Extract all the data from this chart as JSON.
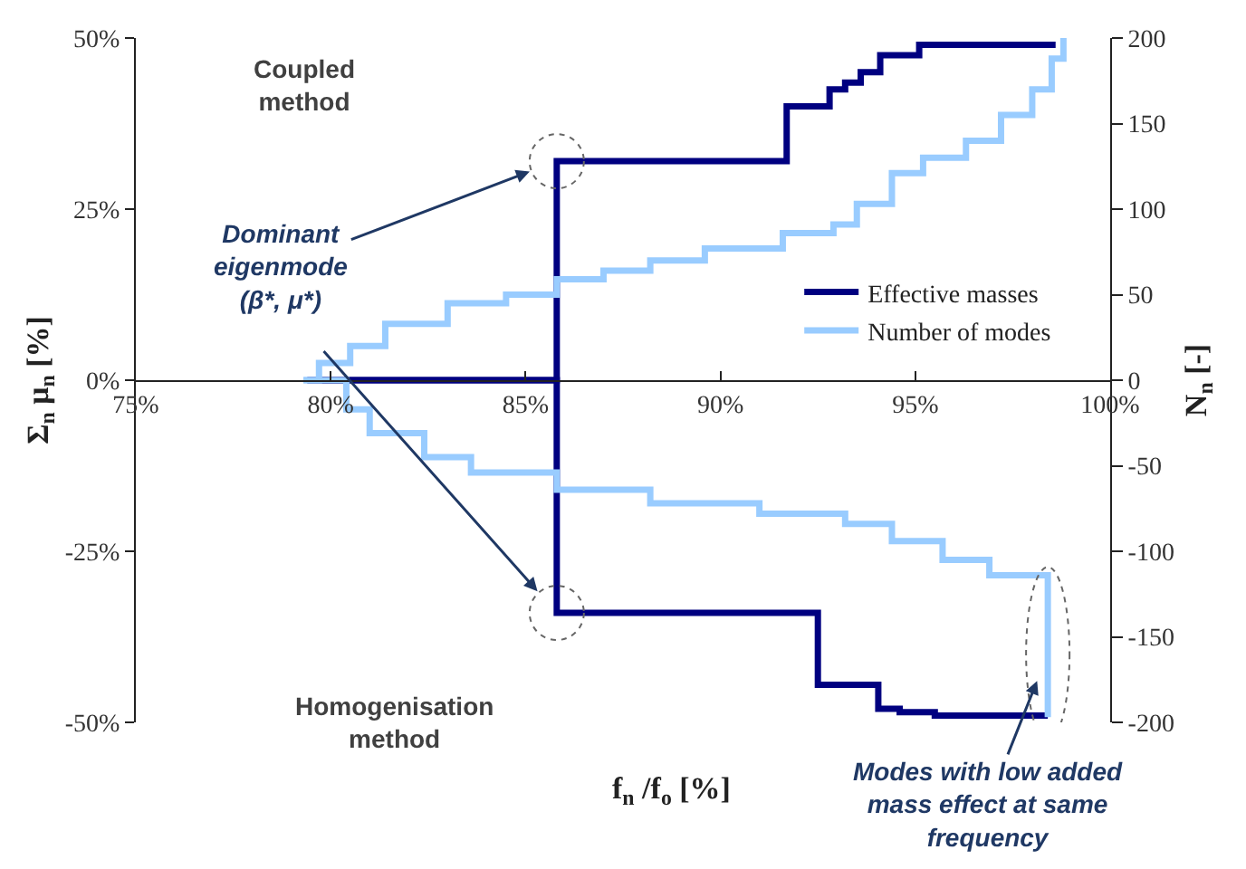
{
  "chart_data": {
    "type": "step",
    "xlabel": "f$_{n}$ /f$_{o}$ [%]",
    "ylabel": "Σ$_{n}$ μ$_{n}$ [%]",
    "y2label": "N$_{n}$ [-]",
    "xlim": [
      75,
      100
    ],
    "xticks": [
      {
        "value": 75,
        "label": "75%"
      },
      {
        "value": 80,
        "label": "80%"
      },
      {
        "value": 85,
        "label": "85%"
      },
      {
        "value": 90,
        "label": "90%"
      },
      {
        "value": 95,
        "label": "95%"
      },
      {
        "value": 100,
        "label": "100%"
      }
    ],
    "ylim": [
      -50,
      50
    ],
    "yticks": [
      {
        "value": -50,
        "label": "-50%"
      },
      {
        "value": -25,
        "label": "-25%"
      },
      {
        "value": 0,
        "label": "0%"
      },
      {
        "value": 25,
        "label": "25%"
      },
      {
        "value": 50,
        "label": "50%"
      }
    ],
    "y2lim": [
      -200,
      200
    ],
    "y2ticks": [
      -200,
      -150,
      -100,
      -50,
      0,
      50,
      100,
      150,
      200
    ],
    "series": [
      {
        "name": "Effective masses",
        "color": "#000080",
        "x": [
          79.4,
          85.8,
          91.7,
          92.8,
          93.2,
          93.6,
          94.1,
          95.1,
          98.6,
          null,
          79.4,
          85.8,
          92.5,
          94.05,
          94.6,
          95.5,
          98.4
        ],
        "values": [
          0,
          32,
          40,
          42.5,
          43.5,
          45,
          47.5,
          49,
          49,
          null,
          0,
          -34,
          -44.5,
          -48,
          -48.5,
          -49,
          -49
        ]
      },
      {
        "name": "Number of modes",
        "axis": "y2",
        "color": "#99ccff",
        "x": [
          79.3,
          79.7,
          80.5,
          81.4,
          83,
          84.5,
          85.8,
          87,
          88.2,
          89.6,
          91.6,
          92.9,
          93.5,
          94.4,
          95.2,
          96.3,
          97.2,
          98,
          98.5,
          98.8,
          null,
          79.3,
          80.3,
          80.4,
          81,
          82.4,
          83.6,
          85.8,
          88.2,
          91,
          93.2,
          94.4,
          95.7,
          96.9,
          98.4,
          98.4
        ],
        "values": [
          0,
          10,
          20,
          33,
          45,
          50,
          59,
          64,
          70,
          77,
          86,
          91,
          103,
          121,
          130,
          140,
          155,
          170,
          188,
          200,
          null,
          0,
          0,
          -17,
          -31,
          -45,
          -54,
          -64,
          -72,
          -78,
          -84,
          -94,
          -105,
          -114,
          -118,
          -197
        ]
      }
    ],
    "annotations": [
      "Coupled method",
      {
        "text": "Dominant eigenmode (β*, μ*)",
        "x": 85.8,
        "y": 32
      },
      "Homogenisation method",
      {
        "text": "Modes with low added mass effect at same frequency",
        "x": 98.4,
        "y": -40
      }
    ],
    "legend": "center right",
    "grid": false,
    "marker": "none",
    "line_style": "solid"
  }
}
